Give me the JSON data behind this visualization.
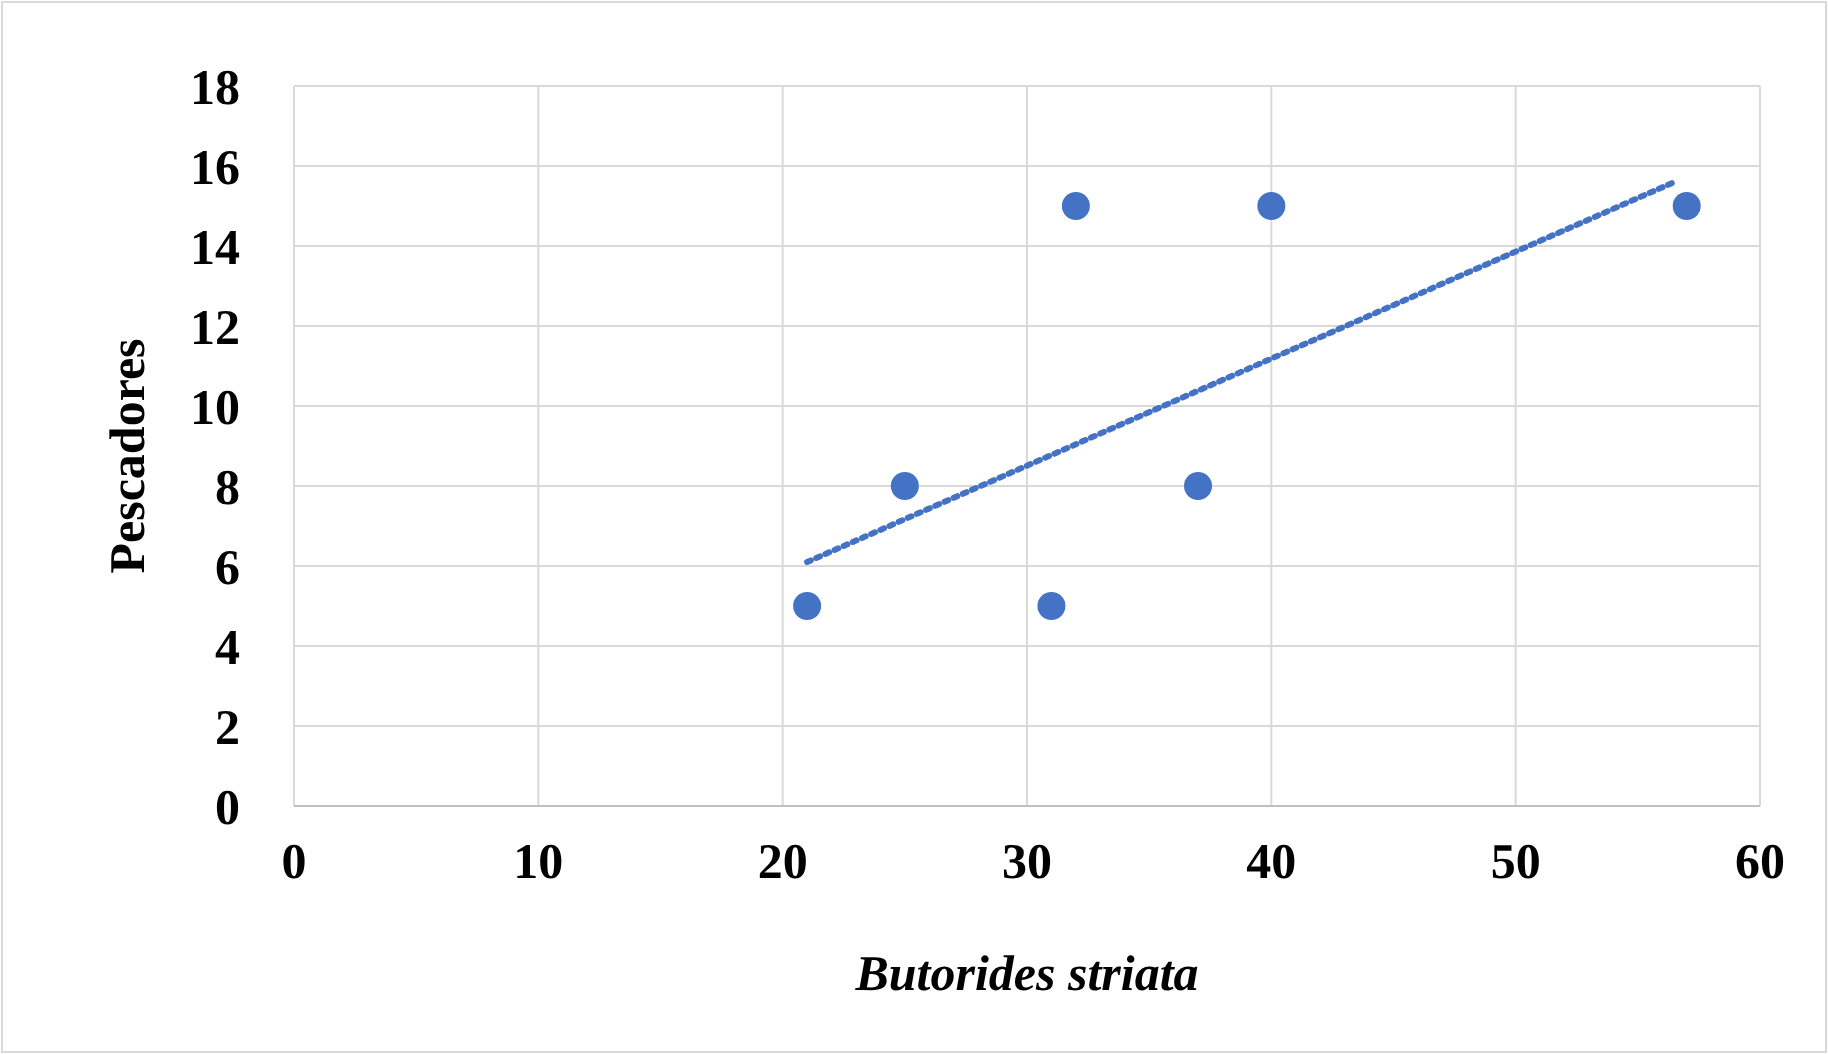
{
  "chart_data": {
    "type": "scatter",
    "xlabel": "Butorides striata",
    "ylabel": "Pescadores",
    "xlim": [
      0,
      60
    ],
    "xticks": [
      0,
      10,
      20,
      30,
      40,
      50,
      60
    ],
    "ylim": [
      0,
      18
    ],
    "yticks": [
      0,
      2,
      4,
      6,
      8,
      10,
      12,
      14,
      16,
      18
    ],
    "grid": true,
    "series": [
      {
        "color": "#4472c4",
        "marker": "circle",
        "x": [
          21,
          25,
          31,
          32,
          37,
          40,
          57
        ],
        "values": [
          5,
          8,
          5,
          15,
          8,
          15,
          15
        ]
      },
      {
        "type": "line",
        "color": "#4472c4",
        "line_style": "dotted",
        "marker": "none",
        "x": [
          21,
          56.5
        ],
        "values": [
          6.1,
          15.6
        ]
      }
    ]
  }
}
